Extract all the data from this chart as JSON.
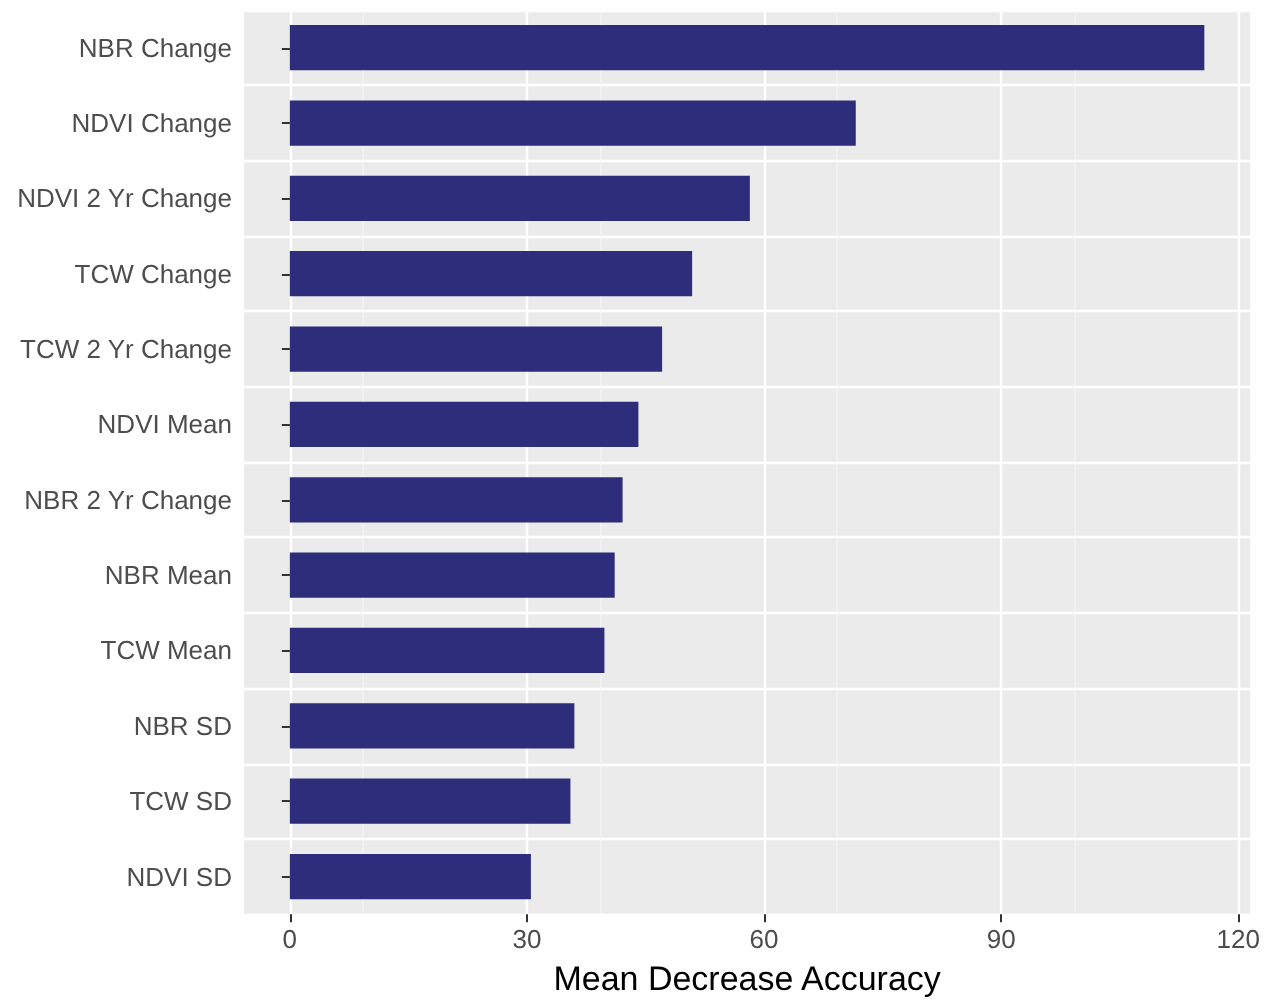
{
  "chart_data": {
    "type": "bar",
    "orientation": "horizontal",
    "xlabel": "Mean Decrease Accuracy",
    "categories": [
      "NBR Change",
      "NDVI Change",
      "NDVI 2 Yr Change",
      "TCW Change",
      "TCW 2 Yr Change",
      "NDVI Mean",
      "NBR 2 Yr Change",
      "NBR Mean",
      "TCW Mean",
      "NBR SD",
      "TCW SD",
      "NDVI SD"
    ],
    "values": [
      115.7,
      71.6,
      58.2,
      50.9,
      47.1,
      44.1,
      42.1,
      41.1,
      39.8,
      36.0,
      35.5,
      30.5
    ],
    "color": "#2e2d7b",
    "xlim": [
      -5.8,
      121.5
    ],
    "xticks": [
      0,
      30,
      60,
      90,
      120
    ],
    "grid": true
  }
}
